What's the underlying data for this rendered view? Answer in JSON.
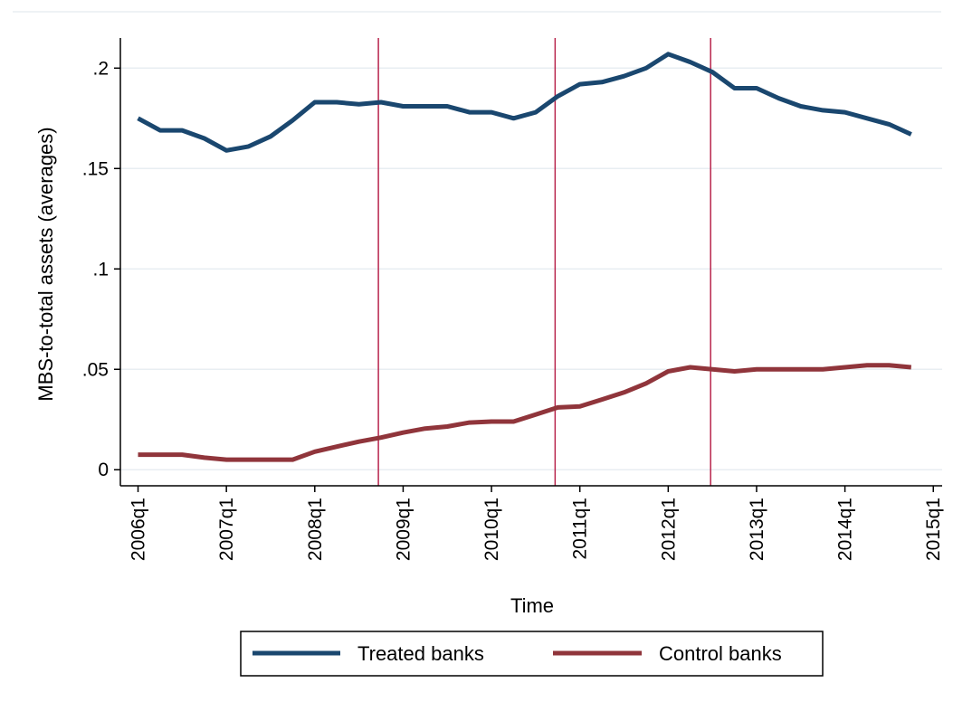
{
  "chart_data": {
    "type": "line",
    "title": "",
    "xlabel": "Time",
    "ylabel": "MBS-to-total assets (averages)",
    "ylim": [
      -0.008,
      0.215
    ],
    "xlim": [
      -0.2,
      9.1
    ],
    "grid": true,
    "legend_position": "bottom",
    "x_ticks": [
      {
        "pos": 0,
        "label": "2006q1"
      },
      {
        "pos": 1,
        "label": "2007q1"
      },
      {
        "pos": 2,
        "label": "2008q1"
      },
      {
        "pos": 3,
        "label": "2009q1"
      },
      {
        "pos": 4,
        "label": "2010q1"
      },
      {
        "pos": 5,
        "label": "2011q1"
      },
      {
        "pos": 6,
        "label": "2012q1"
      },
      {
        "pos": 7,
        "label": "2013q1"
      },
      {
        "pos": 8,
        "label": "2014q1"
      },
      {
        "pos": 9,
        "label": "2015q1"
      }
    ],
    "y_ticks": [
      {
        "value": 0,
        "label": "0"
      },
      {
        "value": 0.05,
        "label": ".05"
      },
      {
        "value": 0.1,
        "label": ".1"
      },
      {
        "value": 0.15,
        "label": ".15"
      },
      {
        "value": 0.2,
        "label": ".2"
      }
    ],
    "vertical_lines": [
      2.72,
      4.72,
      6.48
    ],
    "x_positions": [
      0,
      0.25,
      0.5,
      0.75,
      1,
      1.25,
      1.5,
      1.75,
      2,
      2.25,
      2.5,
      2.75,
      3,
      3.25,
      3.5,
      3.75,
      4,
      4.25,
      4.5,
      4.75,
      5,
      5.25,
      5.5,
      5.75,
      6,
      6.25,
      6.5,
      6.75,
      7,
      7.25,
      7.5,
      7.75,
      8,
      8.25,
      8.5,
      8.75
    ],
    "series": [
      {
        "name": "Treated banks",
        "color": "#1a476f",
        "values": [
          0.175,
          0.169,
          0.169,
          0.165,
          0.159,
          0.161,
          0.166,
          0.174,
          0.183,
          0.183,
          0.182,
          0.183,
          0.181,
          0.181,
          0.181,
          0.178,
          0.178,
          0.175,
          0.178,
          0.186,
          0.192,
          0.193,
          0.196,
          0.2,
          0.207,
          0.203,
          0.198,
          0.19,
          0.19,
          0.185,
          0.181,
          0.179,
          0.178,
          0.175,
          0.172,
          0.167
        ]
      },
      {
        "name": "Control banks",
        "color": "#90353b",
        "values": [
          0.0075,
          0.0075,
          0.0075,
          0.006,
          0.005,
          0.005,
          0.005,
          0.005,
          0.009,
          0.0115,
          0.014,
          0.016,
          0.0185,
          0.0205,
          0.0215,
          0.0235,
          0.024,
          0.024,
          0.0275,
          0.031,
          0.0315,
          0.035,
          0.0385,
          0.043,
          0.049,
          0.051,
          0.05,
          0.049,
          0.05,
          0.05,
          0.05,
          0.05,
          0.051,
          0.052,
          0.052,
          0.051
        ]
      }
    ]
  }
}
